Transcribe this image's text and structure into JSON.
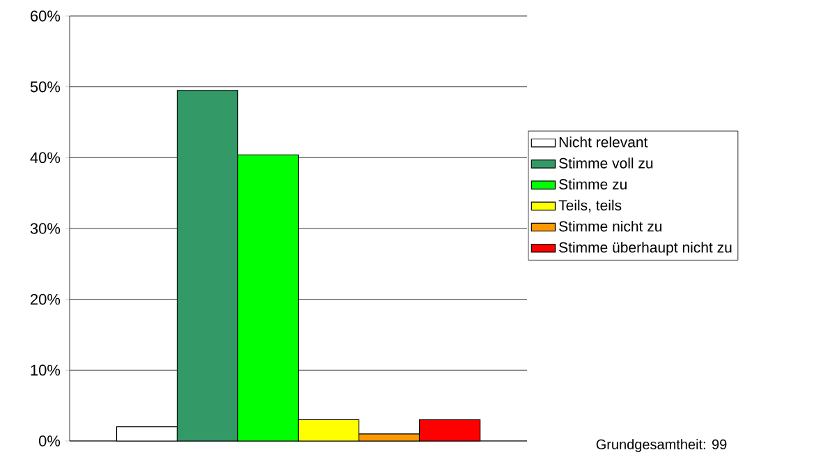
{
  "chart_data": {
    "type": "bar",
    "categories": [
      null
    ],
    "series": [
      {
        "name": "Nicht relevant",
        "color": "#ffffff",
        "values": [
          2.0
        ]
      },
      {
        "name": "Stimme voll zu",
        "color": "#339966",
        "values": [
          49.5
        ]
      },
      {
        "name": "Stimme zu",
        "color": "#00ff00",
        "values": [
          40.4
        ]
      },
      {
        "name": "Teils, teils",
        "color": "#ffff00",
        "values": [
          3.0
        ]
      },
      {
        "name": "Stimme nicht zu",
        "color": "#ff9900",
        "values": [
          1.0
        ]
      },
      {
        "name": "Stimme überhaupt nicht zu",
        "color": "#ff0000",
        "values": [
          3.0
        ]
      }
    ],
    "ylim": [
      0,
      60
    ],
    "yticks": [
      {
        "value": 0,
        "label": "0%"
      },
      {
        "value": 10,
        "label": "10%"
      },
      {
        "value": 20,
        "label": "20%"
      },
      {
        "value": 30,
        "label": "30%"
      },
      {
        "value": 40,
        "label": "40%"
      },
      {
        "value": 50,
        "label": "50%"
      },
      {
        "value": 60,
        "label": "60%"
      }
    ],
    "grid": "y",
    "legend": "right",
    "tick_labels": "y",
    "annotations": [
      "Grundgesamtheit: 99"
    ]
  }
}
